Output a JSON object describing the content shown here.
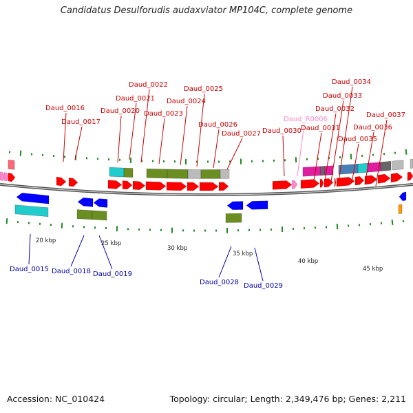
{
  "title": "Candidatus Desulforudis audaxviator MP104C, complete genome",
  "footer": {
    "accession": "Accession: NC_010424",
    "topology": "Topology: circular; Length: 2,349,476 bp; Genes: 2,211"
  },
  "colors": {
    "fwd_cds": "#ff0000",
    "rev_cds": "#0000ff",
    "label_top": "#cc0000",
    "label_bottom": "#0000aa",
    "label_rna": "#ff88cc",
    "backbone": "#888888",
    "tick": "#228822",
    "cog_olive": "#6b8e23",
    "cog_grey": "#bbbbbb",
    "cog_cyan": "#22cccc",
    "cog_magenta": "#e01fa0",
    "cog_steel": "#4a7fb5",
    "cog_dark": "#666666"
  },
  "scale": {
    "tick_labels": [
      "20 kbp",
      "25 kbp",
      "30 kbp",
      "35 kbp",
      "40 kbp",
      "45 kbp"
    ]
  },
  "labels_top": [
    "Daud_0016",
    "Daud_0017",
    "Daud_0020",
    "Daud_0021",
    "Daud_0022",
    "Daud_0023",
    "Daud_0024",
    "Daud_0025",
    "Daud_0026",
    "Daud_0027",
    "Daud_0030",
    "Daud_R0006",
    "Daud_0031",
    "Daud_0032",
    "Daud_0033",
    "Daud_0034",
    "Daud_0035",
    "Daud_0036",
    "Daud_0037"
  ],
  "labels_bottom": [
    "Daud_0015",
    "Daud_0018",
    "Daud_0019",
    "Daud_0028",
    "Daud_0029"
  ]
}
